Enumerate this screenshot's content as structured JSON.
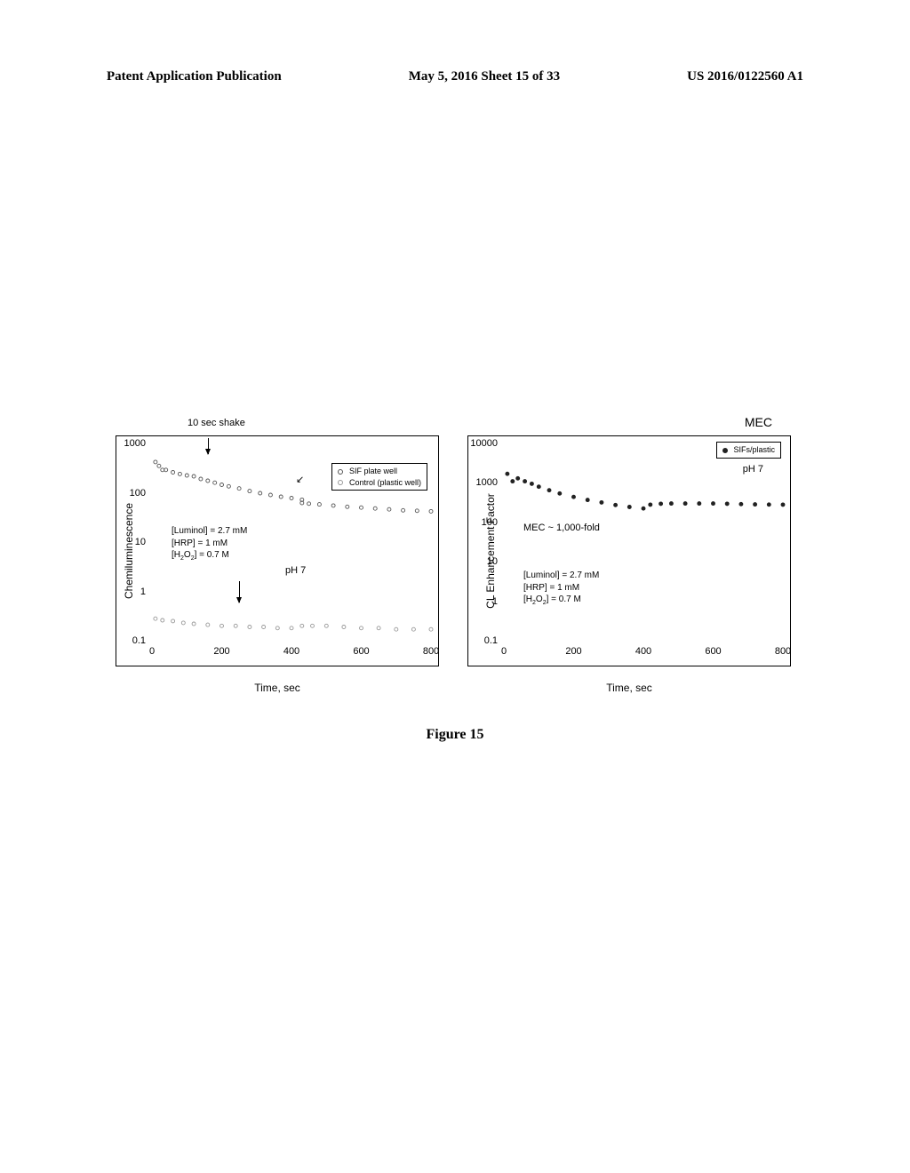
{
  "header": {
    "left": "Patent Application Publication",
    "center": "May 5, 2016  Sheet 15 of 33",
    "right": "US 2016/0122560 A1"
  },
  "figure_caption": "Figure 15",
  "chart_left": {
    "type": "scatter",
    "y_label": "Chemiluminescence",
    "x_label": "Time, sec",
    "top_label": "10 sec shake",
    "xlim": [
      0,
      800
    ],
    "ylim_log": [
      -1,
      3
    ],
    "xticks": [
      0,
      200,
      400,
      600,
      800
    ],
    "yticks": [
      {
        "label": "0.1",
        "exp": -1
      },
      {
        "label": "1",
        "exp": 0
      },
      {
        "label": "10",
        "exp": 1
      },
      {
        "label": "100",
        "exp": 2
      },
      {
        "label": "1000",
        "exp": 3
      }
    ],
    "series": [
      {
        "name": "SIF plate well",
        "marker": "open",
        "color": "#555555",
        "data": [
          [
            10,
            420
          ],
          [
            20,
            350
          ],
          [
            30,
            290
          ],
          [
            40,
            290
          ],
          [
            60,
            260
          ],
          [
            80,
            240
          ],
          [
            100,
            225
          ],
          [
            120,
            215
          ],
          [
            140,
            190
          ],
          [
            160,
            175
          ],
          [
            180,
            160
          ],
          [
            200,
            145
          ],
          [
            220,
            135
          ],
          [
            250,
            122
          ],
          [
            280,
            108
          ],
          [
            310,
            98
          ],
          [
            340,
            90
          ],
          [
            370,
            83
          ],
          [
            400,
            78
          ],
          [
            430,
            72
          ],
          [
            430,
            62
          ],
          [
            450,
            60
          ],
          [
            480,
            58
          ],
          [
            520,
            55
          ],
          [
            560,
            52
          ],
          [
            600,
            50
          ],
          [
            640,
            48
          ],
          [
            680,
            46
          ],
          [
            720,
            44
          ],
          [
            760,
            43
          ],
          [
            800,
            42
          ]
        ]
      },
      {
        "name": "Control (plastic well)",
        "marker": "open",
        "color": "#999999",
        "data": [
          [
            10,
            0.28
          ],
          [
            30,
            0.26
          ],
          [
            60,
            0.25
          ],
          [
            90,
            0.23
          ],
          [
            120,
            0.22
          ],
          [
            160,
            0.21
          ],
          [
            200,
            0.2
          ],
          [
            240,
            0.2
          ],
          [
            280,
            0.19
          ],
          [
            320,
            0.19
          ],
          [
            360,
            0.18
          ],
          [
            400,
            0.18
          ],
          [
            430,
            0.2
          ],
          [
            460,
            0.2
          ],
          [
            500,
            0.2
          ],
          [
            550,
            0.19
          ],
          [
            600,
            0.18
          ],
          [
            650,
            0.18
          ],
          [
            700,
            0.17
          ],
          [
            750,
            0.17
          ],
          [
            800,
            0.17
          ]
        ]
      }
    ],
    "annotations": {
      "conditions_html": "[Luminol] = 2.7 mM<br>[HRP] = 1 mM<br>[H<span class='sub'>2</span>O<span class='sub'>2</span>] = 0.7 M",
      "ph_label": "pH 7"
    },
    "legend": {
      "items": [
        {
          "label": "SIF plate well",
          "marker": "open",
          "color": "#555555"
        },
        {
          "label": "Control (plastic well)",
          "marker": "open",
          "color": "#999999"
        }
      ]
    },
    "background_color": "#ffffff",
    "border_color": "#000000",
    "label_fontsize": 12,
    "tick_fontsize": 11
  },
  "chart_right": {
    "type": "scatter",
    "title_top": "MEC",
    "y_label": "CL Enhancement Factor",
    "x_label": "Time, sec",
    "xlim": [
      0,
      800
    ],
    "ylim_log": [
      -1,
      4
    ],
    "xticks": [
      0,
      200,
      400,
      600,
      800
    ],
    "yticks": [
      {
        "label": "0.1",
        "exp": -1
      },
      {
        "label": "1",
        "exp": 0
      },
      {
        "label": "10",
        "exp": 1
      },
      {
        "label": "100",
        "exp": 2
      },
      {
        "label": "1000",
        "exp": 3
      },
      {
        "label": "10000",
        "exp": 4
      }
    ],
    "series": [
      {
        "name": "SIFs/plastic",
        "marker": "filled",
        "color": "#222222",
        "data": [
          [
            10,
            1700
          ],
          [
            25,
            1100
          ],
          [
            40,
            1300
          ],
          [
            60,
            1100
          ],
          [
            80,
            950
          ],
          [
            100,
            800
          ],
          [
            130,
            650
          ],
          [
            160,
            540
          ],
          [
            200,
            440
          ],
          [
            240,
            370
          ],
          [
            280,
            320
          ],
          [
            320,
            275
          ],
          [
            360,
            245
          ],
          [
            400,
            225
          ],
          [
            420,
            280
          ],
          [
            450,
            295
          ],
          [
            480,
            300
          ],
          [
            520,
            300
          ],
          [
            560,
            300
          ],
          [
            600,
            300
          ],
          [
            640,
            295
          ],
          [
            680,
            290
          ],
          [
            720,
            285
          ],
          [
            760,
            282
          ],
          [
            800,
            280
          ]
        ]
      }
    ],
    "annotations": {
      "mec_note": "MEC ~ 1,000-fold",
      "conditions_html": "[Luminol] = 2.7 mM<br>[HRP] = 1 mM<br>[H<span class='sub'>2</span>O<span class='sub'>2</span>] = 0.7 M",
      "ph_label": "pH 7"
    },
    "legend": {
      "items": [
        {
          "label": "SIFs/plastic",
          "marker": "filled",
          "color": "#222222"
        }
      ]
    },
    "background_color": "#ffffff",
    "border_color": "#000000",
    "label_fontsize": 12,
    "tick_fontsize": 11
  }
}
